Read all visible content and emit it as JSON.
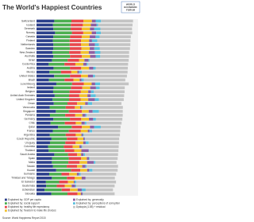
{
  "logo": [
    "WORLD",
    "ECONOMIC",
    "FORUM"
  ],
  "chart_data": {
    "type": "stacked-bar-horizontal",
    "title": "The World's Happiest Countries",
    "source": "Source: World Happiness Report 2015",
    "categories": [
      "Switzerland",
      "Iceland",
      "Denmark",
      "Norway",
      "Canada",
      "Finland",
      "Netherlands",
      "Sweden",
      "New Zealand",
      "Australia",
      "Israel",
      "Costa Rica",
      "Austria",
      "Mexico",
      "United States",
      "Brazil",
      "Luxembourg",
      "Ireland",
      "Belgium",
      "United Arab Emirates",
      "United Kingdom",
      "Oman",
      "Venezuela",
      "Singapore",
      "Panama",
      "Germany",
      "Chile",
      "Qatar",
      "France",
      "Argentina",
      "Czech Republic",
      "Uruguay",
      "Colombia",
      "Thailand",
      "Saudi Arabia",
      "Spain",
      "Malta",
      "Taiwan",
      "Kuwait",
      "Suriname",
      "Trinidad and Tobago",
      "El Salvador",
      "Guatemala",
      "Uzbekistan",
      "Slovakia"
    ],
    "xlim": [
      0,
      8
    ],
    "grid": false,
    "series": [
      {
        "name": "Explained by: GDP per capita",
        "color": "#2b3f8c",
        "values": [
          1.4,
          1.3,
          1.33,
          1.46,
          1.33,
          1.29,
          1.33,
          1.33,
          1.25,
          1.33,
          1.23,
          0.96,
          1.34,
          1.02,
          1.39,
          0.98,
          1.56,
          1.34,
          1.31,
          1.43,
          1.27,
          1.36,
          1.04,
          1.52,
          1.06,
          1.33,
          1.11,
          1.69,
          1.28,
          1.05,
          1.18,
          1.06,
          0.91,
          0.96,
          1.4,
          1.23,
          1.21,
          1.3,
          1.55,
          1.0,
          1.21,
          0.74,
          0.76,
          0.64,
          1.17
        ]
      },
      {
        "name": "Explained by: social support",
        "color": "#4caf50",
        "values": [
          1.35,
          1.4,
          1.36,
          1.33,
          1.32,
          1.32,
          1.28,
          1.29,
          1.32,
          1.31,
          1.22,
          1.24,
          1.29,
          0.91,
          1.25,
          1.23,
          1.24,
          1.37,
          1.29,
          1.13,
          1.29,
          1.08,
          1.26,
          1.02,
          1.2,
          1.3,
          1.12,
          1.08,
          1.26,
          1.25,
          1.21,
          1.21,
          1.24,
          1.27,
          1.08,
          1.31,
          1.3,
          1.08,
          1.16,
          0.97,
          1.18,
          1.04,
          0.83,
          1.34,
          1.27
        ]
      },
      {
        "name": "Explained by: healthy life expectancy",
        "color": "#e8474c",
        "values": [
          0.94,
          0.95,
          0.87,
          0.89,
          0.91,
          0.89,
          0.89,
          0.91,
          0.91,
          0.93,
          0.91,
          0.86,
          0.89,
          0.81,
          0.86,
          0.7,
          0.92,
          0.9,
          0.89,
          0.81,
          0.91,
          0.76,
          0.72,
          1.03,
          0.79,
          0.89,
          0.86,
          0.8,
          0.95,
          0.79,
          0.84,
          0.81,
          0.7,
          0.74,
          0.72,
          0.96,
          0.88,
          0.82,
          0.73,
          0.61,
          0.61,
          0.7,
          0.63,
          0.66,
          0.79
        ]
      },
      {
        "name": "Explained by: freedom to make life choices",
        "color": "#f2c12e",
        "values": [
          0.67,
          0.63,
          0.65,
          0.67,
          0.63,
          0.64,
          0.62,
          0.66,
          0.64,
          0.65,
          0.41,
          0.63,
          0.62,
          0.48,
          0.55,
          0.49,
          0.62,
          0.62,
          0.58,
          0.64,
          0.6,
          0.63,
          0.42,
          0.54,
          0.56,
          0.61,
          0.45,
          0.64,
          0.55,
          0.45,
          0.46,
          0.6,
          0.53,
          0.56,
          0.31,
          0.46,
          0.6,
          0.4,
          0.55,
          0.6,
          0.56,
          0.45,
          0.55,
          0.6,
          0.26
        ]
      },
      {
        "name": "Explained by: generosity",
        "color": "#8e5ea2",
        "values": [
          0.3,
          0.44,
          0.34,
          0.35,
          0.46,
          0.23,
          0.48,
          0.36,
          0.48,
          0.44,
          0.33,
          0.25,
          0.33,
          0.14,
          0.4,
          0.15,
          0.28,
          0.45,
          0.22,
          0.26,
          0.52,
          0.22,
          0.06,
          0.31,
          0.25,
          0.33,
          0.26,
          0.33,
          0.13,
          0.11,
          0.11,
          0.19,
          0.15,
          0.57,
          0.19,
          0.18,
          0.52,
          0.26,
          0.16,
          0.16,
          0.3,
          0.08,
          0.28,
          0.32,
          0.13
        ]
      },
      {
        "name": "Explained by: perceptions of corruption",
        "color": "#5bc0de",
        "values": [
          0.42,
          0.14,
          0.48,
          0.37,
          0.33,
          0.41,
          0.32,
          0.44,
          0.43,
          0.36,
          0.08,
          0.1,
          0.19,
          0.21,
          0.16,
          0.18,
          0.38,
          0.29,
          0.23,
          0.39,
          0.32,
          0.33,
          0.11,
          0.49,
          0.09,
          0.22,
          0.13,
          0.52,
          0.21,
          0.07,
          0.03,
          0.24,
          0.06,
          0.03,
          0.13,
          0.06,
          0.13,
          0.08,
          0.25,
          0.13,
          0.01,
          0.12,
          0.08,
          0.31,
          0.03
        ]
      },
      {
        "name": "Dystopia (1.85) + residual",
        "color": "#c4c4c4",
        "values": [
          2.52,
          2.7,
          2.49,
          2.47,
          2.45,
          2.62,
          2.47,
          2.37,
          2.26,
          2.27,
          3.08,
          3.17,
          2.53,
          3.6,
          2.51,
          3.26,
          2.26,
          1.98,
          2.42,
          2.24,
          1.96,
          2.31,
          3.19,
          1.88,
          2.84,
          2.08,
          2.77,
          1.56,
          2.21,
          2.85,
          2.68,
          2.38,
          2.88,
          2.32,
          2.59,
          2.19,
          1.66,
          2.48,
          1.99,
          2.8,
          2.3,
          3.13,
          3.02,
          2.15,
          2.5
        ]
      }
    ]
  }
}
